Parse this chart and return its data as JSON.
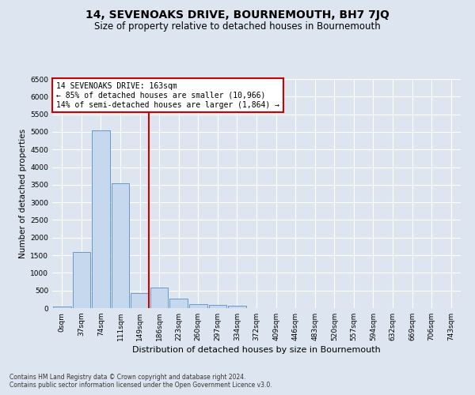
{
  "title": "14, SEVENOAKS DRIVE, BOURNEMOUTH, BH7 7JQ",
  "subtitle": "Size of property relative to detached houses in Bournemouth",
  "xlabel": "Distribution of detached houses by size in Bournemouth",
  "ylabel": "Number of detached properties",
  "categories": [
    "0sqm",
    "37sqm",
    "74sqm",
    "111sqm",
    "149sqm",
    "186sqm",
    "223sqm",
    "260sqm",
    "297sqm",
    "334sqm",
    "372sqm",
    "409sqm",
    "446sqm",
    "483sqm",
    "520sqm",
    "557sqm",
    "594sqm",
    "632sqm",
    "669sqm",
    "706sqm",
    "743sqm"
  ],
  "bar_heights": [
    50,
    1600,
    5050,
    3550,
    420,
    580,
    270,
    120,
    90,
    70,
    0,
    0,
    0,
    0,
    0,
    0,
    0,
    0,
    0,
    0,
    0
  ],
  "bar_color": "#c5d8ed",
  "bar_edge_color": "#6899c8",
  "vline_color": "#cc0000",
  "annotation_text": "14 SEVENOAKS DRIVE: 163sqm\n← 85% of detached houses are smaller (10,966)\n14% of semi-detached houses are larger (1,864) →",
  "annotation_box_color": "#ffffff",
  "annotation_box_edge": "#cc0000",
  "ylim": [
    0,
    6500
  ],
  "yticks": [
    0,
    500,
    1000,
    1500,
    2000,
    2500,
    3000,
    3500,
    4000,
    4500,
    5000,
    5500,
    6000,
    6500
  ],
  "footer1": "Contains HM Land Registry data © Crown copyright and database right 2024.",
  "footer2": "Contains public sector information licensed under the Open Government Licence v3.0.",
  "bg_color": "#dde6f0",
  "plot_bg_color": "#dde6f0",
  "grid_color": "#ffffff",
  "title_fontsize": 10,
  "subtitle_fontsize": 8.5,
  "xlabel_fontsize": 8,
  "ylabel_fontsize": 7.5,
  "annotation_fontsize": 7,
  "tick_fontsize": 6.5,
  "footer_fontsize": 5.5
}
